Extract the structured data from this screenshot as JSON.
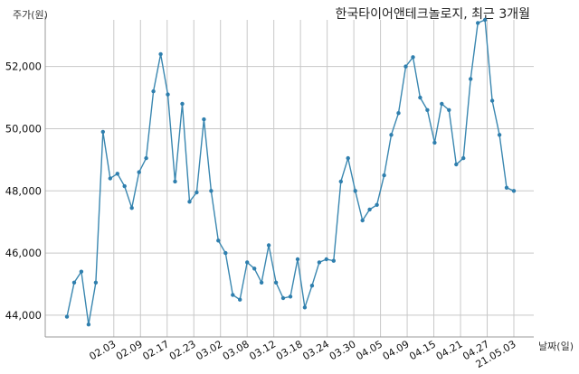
{
  "chart_data": {
    "type": "line",
    "title": "한국타이어앤테크놀로지, 최근 3개월",
    "ylabel": "주가(원)",
    "xlabel": "날짜(일)",
    "ylim": [
      43300,
      53500
    ],
    "yticks": [
      44000,
      46000,
      48000,
      50000,
      52000
    ],
    "ytick_labels": [
      "44,000",
      "46,000",
      "48,000",
      "50,000",
      "52,000"
    ],
    "xtick_labels": [
      "02.03",
      "02.09",
      "02.17",
      "02.23",
      "03.02",
      "03.08",
      "03.12",
      "03.18",
      "03.24",
      "03.30",
      "04.05",
      "04.09",
      "04.15",
      "04.21",
      "04.27",
      "21.05.03"
    ],
    "grid": true,
    "series": [
      {
        "values": [
          43950,
          45050,
          45400,
          43700,
          45050,
          49900,
          48400,
          48550,
          48150,
          47450,
          48600,
          49050,
          51200,
          52400,
          51100,
          48300,
          50800,
          47650,
          47950,
          50300,
          48000,
          46400,
          46000,
          44650,
          44500,
          45700,
          45500,
          45050,
          46250,
          45050,
          44550,
          44600,
          45800,
          44250,
          44950,
          45700,
          45800,
          45750,
          48300,
          49050,
          48000,
          47050,
          47400,
          47550,
          48500,
          49800,
          50500,
          52000,
          52300,
          51000,
          50600,
          49550,
          50800,
          50600,
          48850,
          49050,
          51600,
          53400,
          53500,
          50900,
          49800,
          48100,
          48000
        ]
      }
    ]
  }
}
